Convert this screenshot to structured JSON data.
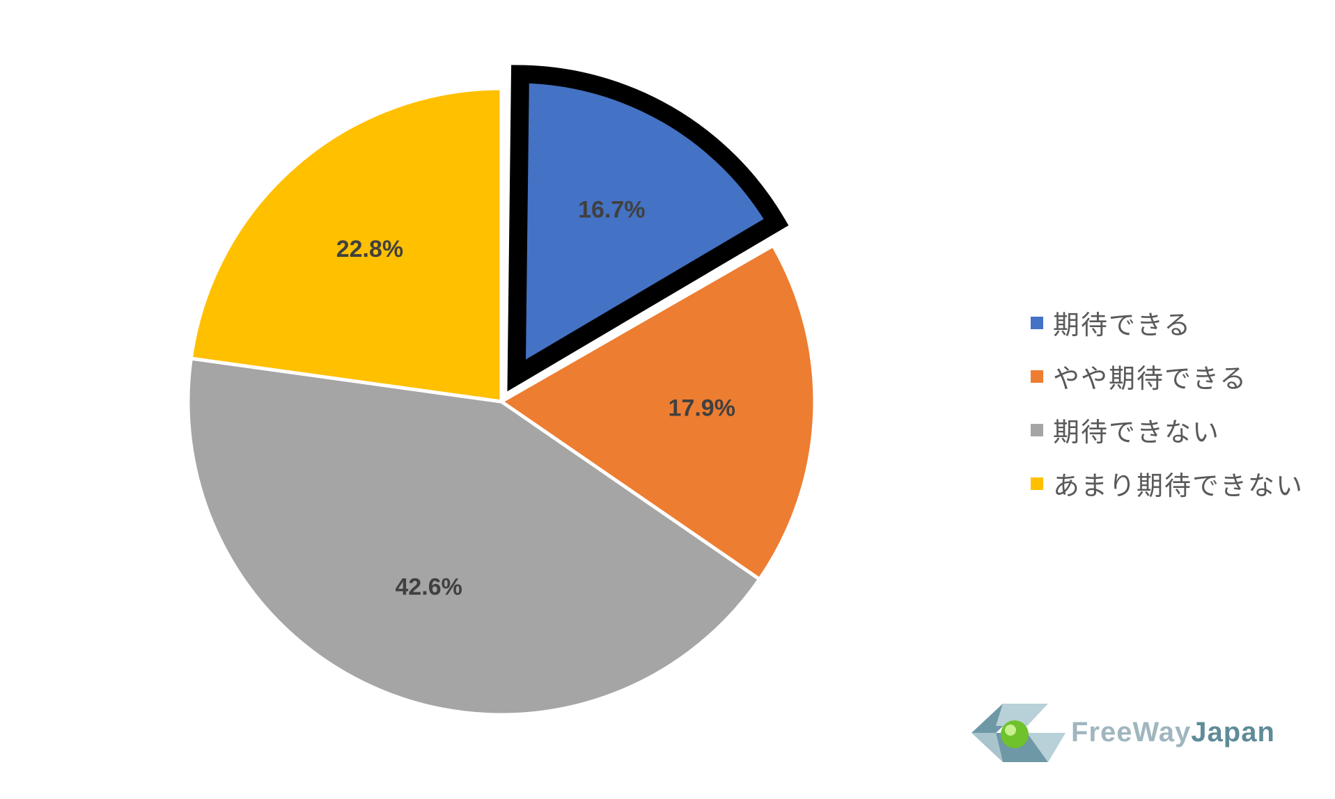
{
  "chart_data": {
    "type": "pie",
    "start_angle_deg": 0,
    "direction": "clockwise",
    "slices": [
      {
        "label": "期待できる",
        "value": 16.7,
        "display": "16.7%",
        "color": "#4472C4",
        "exploded": true,
        "highlight_border": true
      },
      {
        "label": "やや期待できる",
        "value": 17.9,
        "display": "17.9%",
        "color": "#ED7D31"
      },
      {
        "label": "期待できない",
        "value": 42.6,
        "display": "42.6%",
        "color": "#A5A5A5"
      },
      {
        "label": "あまり期待できない",
        "value": 22.8,
        "display": "22.8%",
        "color": "#FFC000"
      }
    ],
    "legend_position": "right",
    "data_label_color": "#404040"
  },
  "legend": {
    "items": [
      {
        "label": "期待できる",
        "color": "#4472C4"
      },
      {
        "label": "やや期待できる",
        "color": "#ED7D31"
      },
      {
        "label": "期待できない",
        "color": "#A5A5A5"
      },
      {
        "label": "あまり期待できない",
        "color": "#FFC000"
      }
    ]
  },
  "logo": {
    "part1": "FreeWay",
    "part2": "Japan",
    "colors": {
      "light": "#A0B6BF",
      "dark": "#5E8B97",
      "ball": "#6FC22B"
    }
  }
}
